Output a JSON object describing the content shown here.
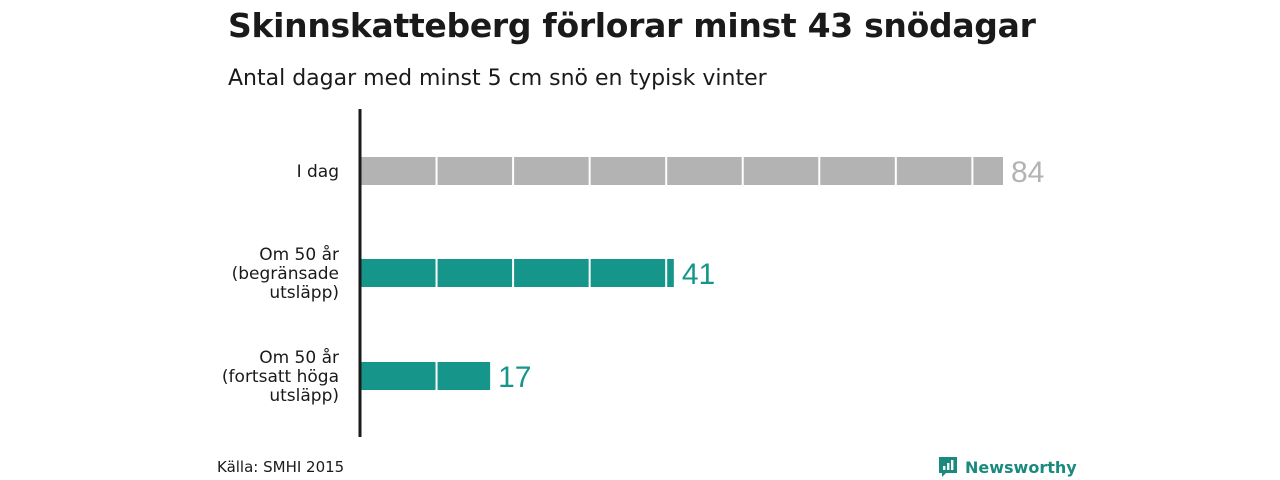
{
  "header": {
    "title": "Skinnskatteberg förlorar minst 43 snödagar",
    "subtitle": "Antal dagar med minst 5 cm snö en typisk vinter"
  },
  "footer": {
    "source": "Källa: SMHI 2015",
    "brand": "Newsworthy"
  },
  "colors": {
    "today": "#b3b3b3",
    "future": "#16968a",
    "axis": "#1a1a1a",
    "brand": "#1a8a7e"
  },
  "chart_data": {
    "type": "bar",
    "orientation": "horizontal",
    "title": "Skinnskatteberg förlorar minst 43 snödagar",
    "subtitle": "Antal dagar med minst 5 cm snö en typisk vinter",
    "categories": [
      [
        "I dag"
      ],
      [
        "Om 50 år",
        "(begränsade",
        "utsläpp)"
      ],
      [
        "Om 50 år",
        "(fortsatt höga",
        "utsläpp)"
      ]
    ],
    "values": [
      84,
      41,
      17
    ],
    "value_labels": [
      "84",
      "41",
      "17"
    ],
    "bar_colors": [
      "#b3b3b3",
      "#16968a",
      "#16968a"
    ],
    "segment_size": 10,
    "xlim": [
      0,
      84
    ],
    "grid": false,
    "legend": "none"
  }
}
